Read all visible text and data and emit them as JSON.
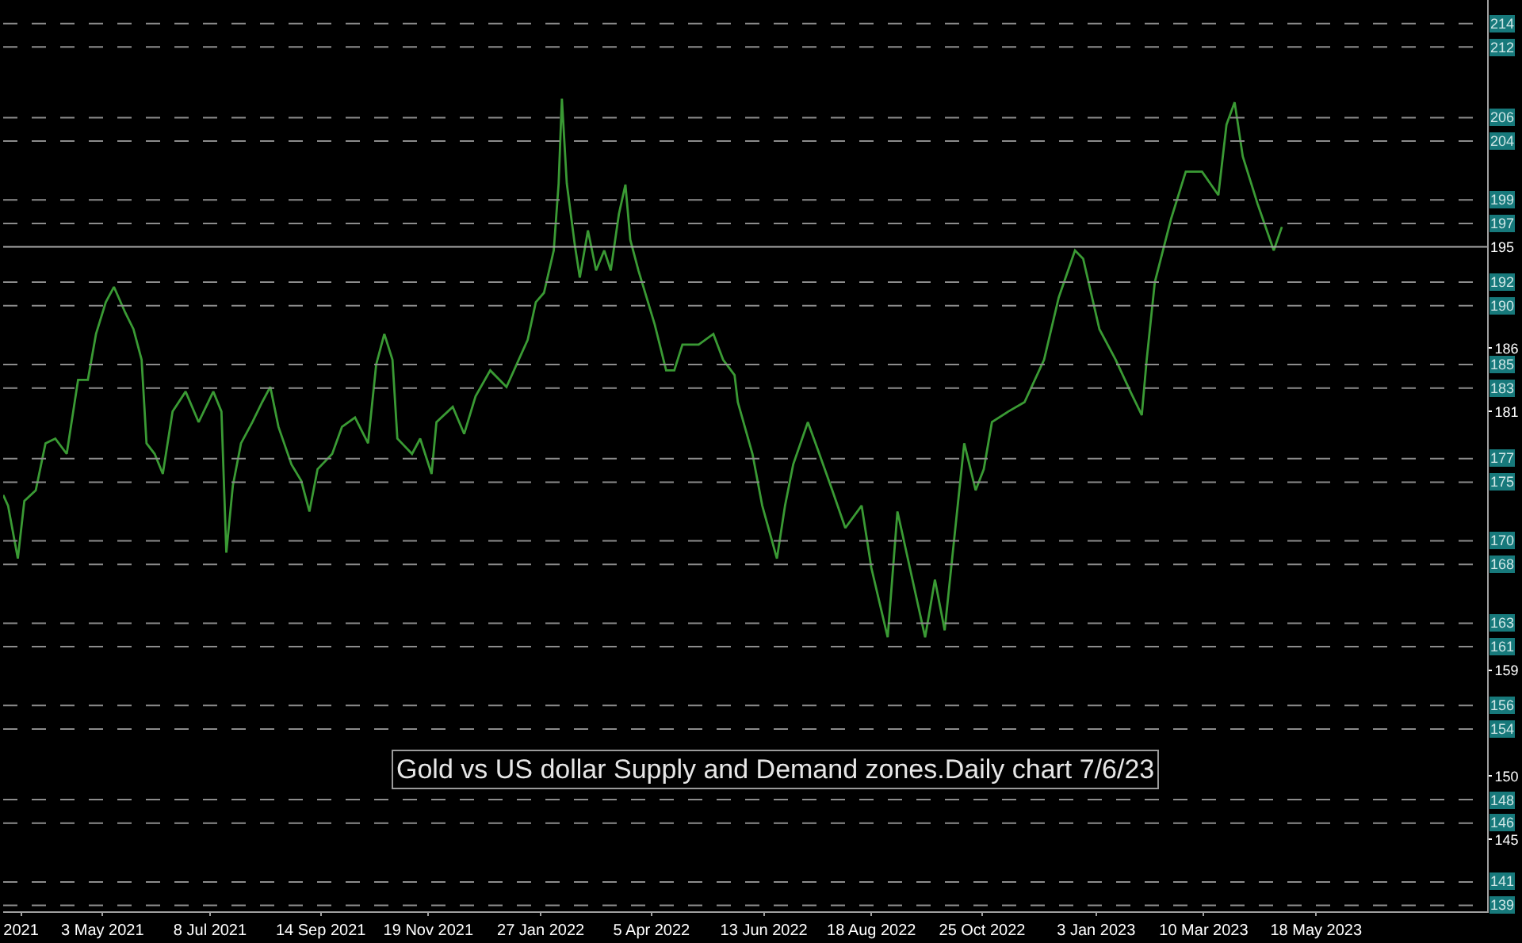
{
  "chart_data": {
    "type": "line",
    "annotations": [
      "Gold vs US dollar Supply and Demand zones.Daily chart 7/6/23"
    ],
    "x": [
      "2021-03-03",
      "2021-03-06",
      "2021-03-12",
      "2021-03-16",
      "2021-03-23",
      "2021-03-29",
      "2021-04-04",
      "2021-04-11",
      "2021-04-18",
      "2021-04-24",
      "2021-04-29",
      "2021-05-05",
      "2021-05-10",
      "2021-05-17",
      "2021-05-22",
      "2021-05-27",
      "2021-05-30",
      "2021-06-04",
      "2021-06-09",
      "2021-06-15",
      "2021-06-23",
      "2021-07-01",
      "2021-07-10",
      "2021-07-15",
      "2021-07-18",
      "2021-07-22",
      "2021-07-27",
      "2021-08-03",
      "2021-08-09",
      "2021-08-14",
      "2021-08-19",
      "2021-08-27",
      "2021-09-02",
      "2021-09-07",
      "2021-09-12",
      "2021-09-21",
      "2021-09-27",
      "2021-10-05",
      "2021-10-13",
      "2021-10-18",
      "2021-10-23",
      "2021-10-28",
      "2021-10-31",
      "2021-11-09",
      "2021-11-14",
      "2021-11-21",
      "2021-11-24",
      "2021-12-04",
      "2021-12-11",
      "2021-12-18",
      "2021-12-27",
      "2022-01-06",
      "2022-01-19",
      "2022-01-24",
      "2022-01-29",
      "2022-02-04",
      "2022-02-07",
      "2022-02-09",
      "2022-02-12",
      "2022-02-17",
      "2022-02-20",
      "2022-02-25",
      "2022-03-02",
      "2022-03-07",
      "2022-03-11",
      "2022-03-16",
      "2022-03-20",
      "2022-03-23",
      "2022-03-28",
      "2022-04-02",
      "2022-04-07",
      "2022-04-14",
      "2022-04-19",
      "2022-04-24",
      "2022-05-04",
      "2022-05-13",
      "2022-05-19",
      "2022-05-26",
      "2022-05-28",
      "2022-06-06",
      "2022-06-12",
      "2022-06-21",
      "2022-06-26",
      "2022-07-01",
      "2022-07-10",
      "2022-07-16",
      "2022-07-25",
      "2022-08-02",
      "2022-08-12",
      "2022-08-18",
      "2022-08-28",
      "2022-09-03",
      "2022-09-10",
      "2022-09-20",
      "2022-09-26",
      "2022-10-02",
      "2022-10-09",
      "2022-10-14",
      "2022-10-21",
      "2022-10-26",
      "2022-10-31",
      "2022-11-10",
      "2022-11-20",
      "2022-12-02",
      "2022-12-11",
      "2022-12-21",
      "2022-12-26",
      "2023-01-05",
      "2023-01-15",
      "2023-01-24",
      "2023-01-31",
      "2023-02-03",
      "2023-02-08",
      "2023-02-18",
      "2023-02-27",
      "2023-03-09",
      "2023-03-19",
      "2023-03-24",
      "2023-03-29",
      "2023-04-03",
      "2023-04-12",
      "2023-04-22",
      "2023-04-27"
    ],
    "series": [
      {
        "color": "#3a9a34",
        "values": [
          173.9,
          173.0,
          168.5,
          173.4,
          174.3,
          178.3,
          178.7,
          177.4,
          183.7,
          183.7,
          187.6,
          190.3,
          191.6,
          189.4,
          188.0,
          185.4,
          178.3,
          177.4,
          175.7,
          181.0,
          182.7,
          180.1,
          182.7,
          181.0,
          169.0,
          174.7,
          178.3,
          180.1,
          181.8,
          183.1,
          179.7,
          176.5,
          175.1,
          172.5,
          176.1,
          177.4,
          179.7,
          180.5,
          178.3,
          185.0,
          187.6,
          185.4,
          178.7,
          177.4,
          178.7,
          175.7,
          180.1,
          181.4,
          179.1,
          182.3,
          184.5,
          183.1,
          187.1,
          190.3,
          191.1,
          194.7,
          200.4,
          207.6,
          200.4,
          195.1,
          192.4,
          196.4,
          193.0,
          194.7,
          193.0,
          197.8,
          200.3,
          195.6,
          193.0,
          190.7,
          188.4,
          184.5,
          184.5,
          186.7,
          186.7,
          187.6,
          185.4,
          184.1,
          181.8,
          177.4,
          173.0,
          168.5,
          173.0,
          176.5,
          180.1,
          177.8,
          174.3,
          171.1,
          173.0,
          167.7,
          161.8,
          172.5,
          168.1,
          161.8,
          166.7,
          162.4,
          171.7,
          178.3,
          174.3,
          176.1,
          180.1,
          181.0,
          181.8,
          185.4,
          190.7,
          194.7,
          194.0,
          188.0,
          185.4,
          182.7,
          180.7,
          185.4,
          192.0,
          197.4,
          201.4,
          201.4,
          199.4,
          205.4,
          207.3,
          202.7,
          198.7,
          194.7,
          196.7
        ]
      }
    ],
    "xlim": [
      "2021-03-03",
      "2023-08-31"
    ],
    "xticks": [
      {
        "value": "2021-03-14",
        "label": "2021"
      },
      {
        "value": "2021-05-03",
        "label": "3 May 2021"
      },
      {
        "value": "2021-07-08",
        "label": "8 Jul 2021"
      },
      {
        "value": "2021-09-14",
        "label": "14 Sep 2021"
      },
      {
        "value": "2021-11-19",
        "label": "19 Nov 2021"
      },
      {
        "value": "2022-01-27",
        "label": "27 Jan 2022"
      },
      {
        "value": "2022-04-05",
        "label": "5 Apr 2022"
      },
      {
        "value": "2022-06-13",
        "label": "13 Jun 2022"
      },
      {
        "value": "2022-08-18",
        "label": "18 Aug 2022"
      },
      {
        "value": "2022-10-25",
        "label": "25 Oct 2022"
      },
      {
        "value": "2023-01-03",
        "label": "3 Jan 2023"
      },
      {
        "value": "2023-03-10",
        "label": "10 Mar 2023"
      },
      {
        "value": "2023-05-18",
        "label": "18 May 2023"
      }
    ],
    "ylim": [
      138.5,
      216
    ],
    "yticks": [
      {
        "value": 186.4,
        "label": "186"
      },
      181,
      159,
      150,
      {
        "value": 144.6,
        "label": "145"
      }
    ],
    "line_style": "solid",
    "ref_lines": [
      {
        "axis": "y",
        "value": 214,
        "label": "214",
        "color": "#8c8c8c",
        "line_style": "dashed"
      },
      {
        "axis": "y",
        "value": 212,
        "label": "212",
        "color": "#8c8c8c",
        "line_style": "dashed"
      },
      {
        "axis": "y",
        "value": 206,
        "label": "206",
        "color": "#8c8c8c",
        "line_style": "dashed"
      },
      {
        "axis": "y",
        "value": 204,
        "label": "204",
        "color": "#8c8c8c",
        "line_style": "dashed"
      },
      {
        "axis": "y",
        "value": 199,
        "label": "199",
        "color": "#8c8c8c",
        "line_style": "dashed"
      },
      {
        "axis": "y",
        "value": 197,
        "label": "197",
        "color": "#8c8c8c",
        "line_style": "dashed"
      },
      {
        "axis": "y",
        "value": 195,
        "label": "195",
        "color": "#a8a8a8",
        "line_style": "solid"
      },
      {
        "axis": "y",
        "value": 192,
        "label": "192",
        "color": "#8c8c8c",
        "line_style": "dashed"
      },
      {
        "axis": "y",
        "value": 190,
        "label": "190",
        "color": "#8c8c8c",
        "line_style": "dashed"
      },
      {
        "axis": "y",
        "value": 185,
        "label": "185",
        "color": "#8c8c8c",
        "line_style": "dashed"
      },
      {
        "axis": "y",
        "value": 183,
        "label": "183",
        "color": "#8c8c8c",
        "line_style": "dashed"
      },
      {
        "axis": "y",
        "value": 177,
        "label": "177",
        "color": "#8c8c8c",
        "line_style": "dashed"
      },
      {
        "axis": "y",
        "value": 175,
        "label": "175",
        "color": "#8c8c8c",
        "line_style": "dashed"
      },
      {
        "axis": "y",
        "value": 170,
        "label": "170",
        "color": "#8c8c8c",
        "line_style": "dashed"
      },
      {
        "axis": "y",
        "value": 168,
        "label": "168",
        "color": "#8c8c8c",
        "line_style": "dashed"
      },
      {
        "axis": "y",
        "value": 163,
        "label": "163",
        "color": "#8c8c8c",
        "line_style": "dashed"
      },
      {
        "axis": "y",
        "value": 161,
        "label": "161",
        "color": "#8c8c8c",
        "line_style": "dashed"
      },
      {
        "axis": "y",
        "value": 156,
        "label": "156",
        "color": "#8c8c8c",
        "line_style": "dashed"
      },
      {
        "axis": "y",
        "value": 154,
        "label": "154",
        "color": "#8c8c8c",
        "line_style": "dashed"
      },
      {
        "axis": "y",
        "value": 148,
        "label": "148",
        "color": "#8c8c8c",
        "line_style": "dashed"
      },
      {
        "axis": "y",
        "value": 146,
        "label": "146",
        "color": "#8c8c8c",
        "line_style": "dashed"
      },
      {
        "axis": "y",
        "value": 141,
        "label": "141",
        "color": "#8c8c8c",
        "line_style": "dashed"
      },
      {
        "axis": "y",
        "value": 139,
        "label": "139",
        "color": "#8c8c8c",
        "line_style": "dashed"
      }
    ]
  }
}
